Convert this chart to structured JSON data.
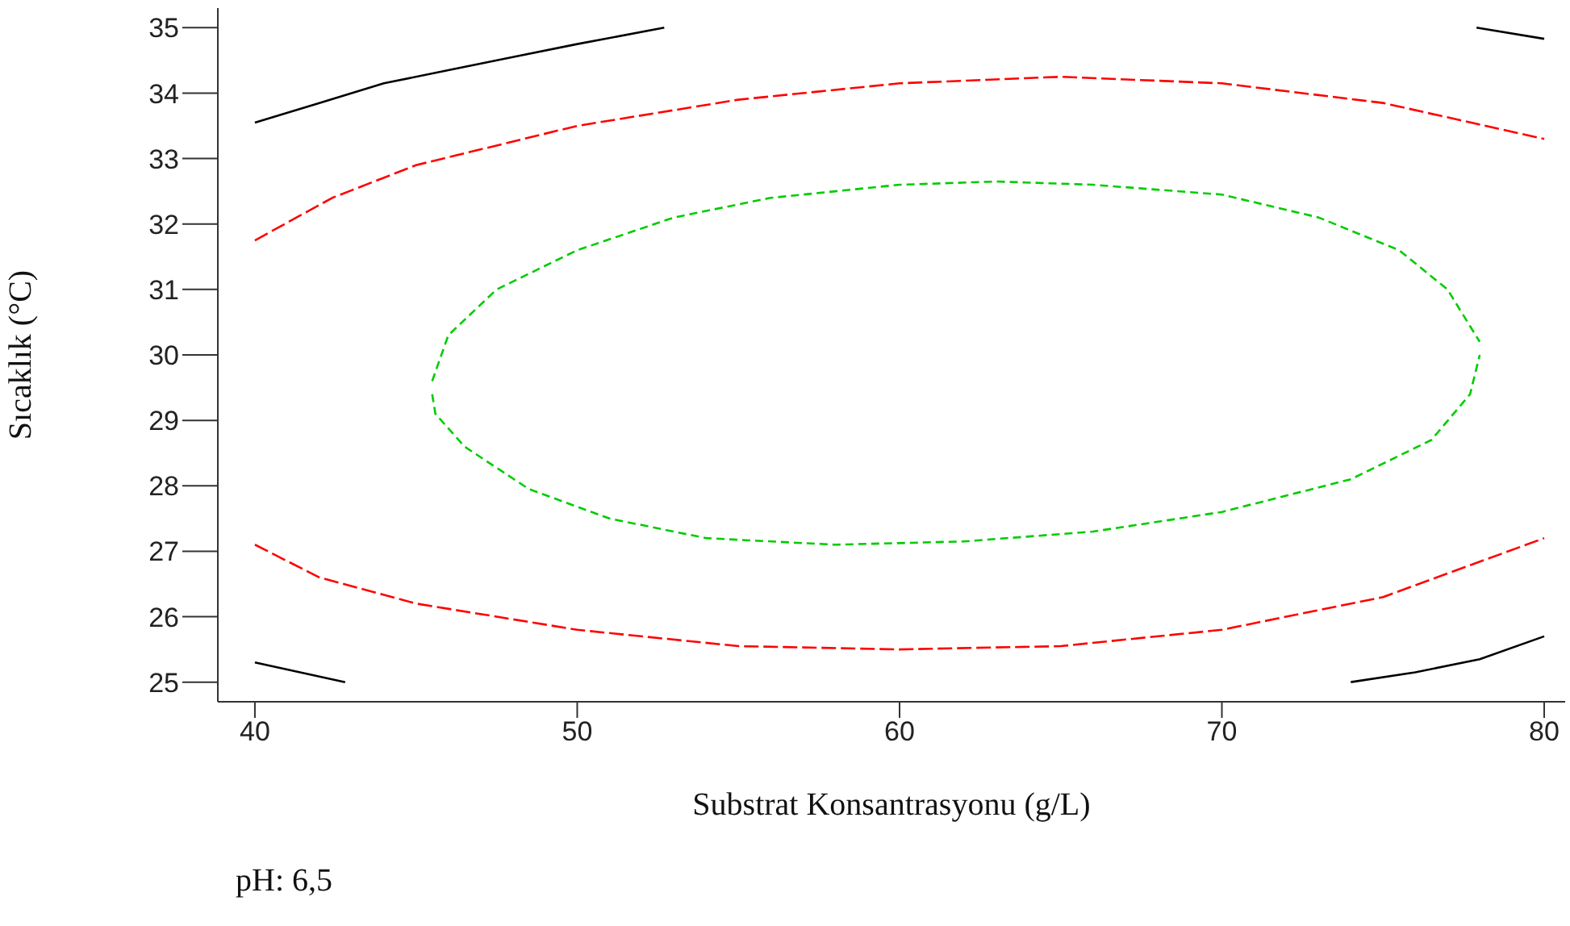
{
  "chart_data": {
    "type": "line",
    "xlabel": "Substrat Konsantrasyonu (g/L)",
    "ylabel": "Sıcaklık (°C)",
    "annotations": [
      "pH: 6,5"
    ],
    "xlim": [
      38.85,
      80.65
    ],
    "ylim": [
      24.7,
      35.3
    ],
    "xticks": [
      40,
      50,
      60,
      70,
      80
    ],
    "yticks": [
      25,
      26,
      27,
      28,
      29,
      30,
      31,
      32,
      33,
      34,
      35
    ],
    "grid": false,
    "marker": "none",
    "series": [
      {
        "color": "#000000",
        "line_style": "solid",
        "x": [
          40,
          42,
          44,
          46,
          48,
          50,
          52.7
        ],
        "values": [
          33.55,
          33.85,
          34.15,
          34.35,
          34.55,
          34.75,
          35.0
        ]
      },
      {
        "color": "#000000",
        "line_style": "solid",
        "x": [
          77.9,
          80
        ],
        "values": [
          35.0,
          34.83
        ]
      },
      {
        "color": "#000000",
        "line_style": "solid",
        "x": [
          40,
          42.8
        ],
        "values": [
          25.3,
          25.0
        ]
      },
      {
        "color": "#000000",
        "line_style": "solid",
        "x": [
          74,
          76,
          78,
          80
        ],
        "values": [
          25.0,
          25.15,
          25.35,
          25.7
        ]
      },
      {
        "color": "#ff0000",
        "line_style": "dashed",
        "x": [
          40,
          42.4,
          45,
          50,
          55,
          60,
          65,
          70,
          75,
          80
        ],
        "values": [
          31.75,
          32.4,
          32.9,
          33.5,
          33.9,
          34.15,
          34.25,
          34.15,
          33.85,
          33.3
        ]
      },
      {
        "color": "#ff0000",
        "line_style": "dashed",
        "x": [
          40,
          42,
          45,
          50,
          55,
          60,
          65,
          70,
          75,
          80
        ],
        "values": [
          27.1,
          26.6,
          26.2,
          25.8,
          25.55,
          25.5,
          25.55,
          25.8,
          26.3,
          27.2
        ]
      },
      {
        "color": "#00cc00",
        "line_style": "dotted",
        "x": [
          45.5,
          46,
          47.5,
          50,
          53,
          56,
          60,
          63,
          66,
          70,
          73,
          75.5,
          77,
          78
        ],
        "values": [
          29.6,
          30.3,
          31.0,
          31.6,
          32.1,
          32.4,
          32.6,
          32.65,
          32.6,
          32.45,
          32.1,
          31.6,
          31.0,
          30.2
        ]
      },
      {
        "color": "#00cc00",
        "line_style": "dotted",
        "x": [
          45.5,
          45.6,
          46.5,
          48.5,
          51,
          54,
          58,
          62,
          66,
          70,
          74,
          76.5,
          77.7,
          78
        ],
        "values": [
          29.4,
          29.1,
          28.6,
          27.95,
          27.5,
          27.2,
          27.1,
          27.15,
          27.3,
          27.6,
          28.1,
          28.7,
          29.4,
          30.0
        ]
      }
    ]
  }
}
